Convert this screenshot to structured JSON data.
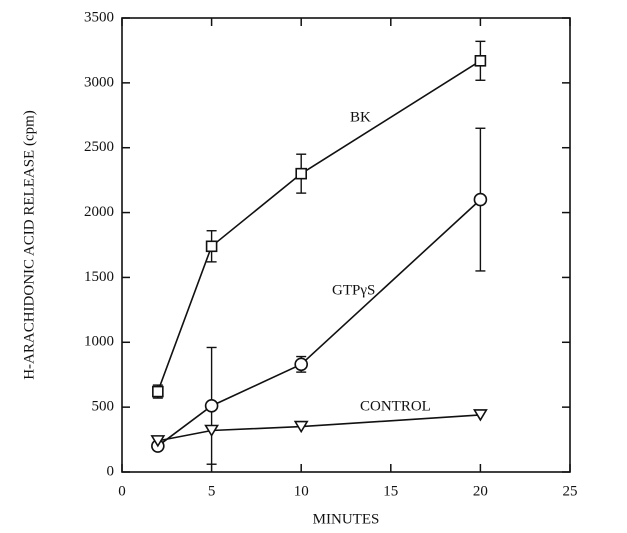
{
  "chart_data": {
    "type": "line",
    "x_label": "MINUTES",
    "y_label": "H-ARACHIDONIC ACID RELEASE (cpm)",
    "xlim": [
      0,
      25
    ],
    "xticks": [
      0,
      5,
      10,
      15,
      20,
      25
    ],
    "ylim": [
      0,
      3500
    ],
    "yticks": [
      0,
      500,
      1000,
      1500,
      2000,
      2500,
      3000,
      3500
    ],
    "annotations": [
      "BK",
      "GTPγS",
      "CONTROL"
    ],
    "series": [
      {
        "name": "BK",
        "color": "#111111",
        "marker": "square",
        "x": [
          2,
          5,
          10,
          20
        ],
        "values": [
          620,
          1740,
          2300,
          3170
        ],
        "errors": [
          50,
          120,
          150,
          150
        ]
      },
      {
        "name": "GTPγS",
        "color": "#111111",
        "marker": "circle",
        "x": [
          2,
          5,
          10,
          20
        ],
        "values": [
          200,
          510,
          830,
          2100
        ],
        "errors": [
          null,
          450,
          60,
          550
        ]
      },
      {
        "name": "CONTROL",
        "color": "#111111",
        "marker": "triangle-down",
        "x": [
          2,
          5,
          10,
          20
        ],
        "values": [
          240,
          320,
          350,
          440
        ],
        "errors": [
          null,
          null,
          null,
          null
        ]
      }
    ]
  }
}
